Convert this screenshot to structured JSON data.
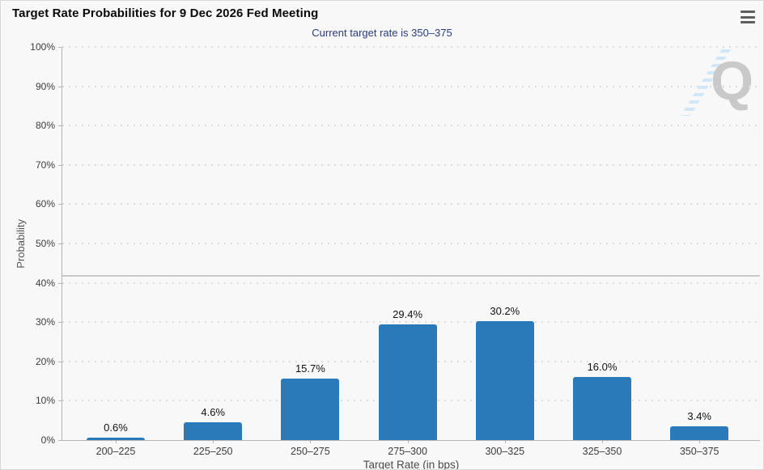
{
  "header": {
    "title": "Target Rate Probabilities for 9 Dec 2026 Fed Meeting",
    "menu_icon": "hamburger-icon"
  },
  "subtitle": "Current target rate is 350–375",
  "watermark_letter": "Q",
  "colors": {
    "bar": "#2a7ab9",
    "subtitle_text": "#2a3a7e",
    "axis_line": "#b5b5b5",
    "gridline": "#dbdbdb",
    "reference_line": "#c9c9c9",
    "watermark_gray": "#c9c9c9",
    "watermark_blue": "#cfe7f8",
    "page_background": "#f8f8f9"
  },
  "chart_data": {
    "type": "bar",
    "title": "Target Rate Probabilities for 9 Dec 2026 Fed Meeting",
    "subtitle": "Current target rate is 350–375",
    "categories": [
      "200–225",
      "225–250",
      "250–275",
      "275–300",
      "300–325",
      "325–350",
      "350–375"
    ],
    "values": [
      0.6,
      4.6,
      15.7,
      29.4,
      30.2,
      16.0,
      3.4
    ],
    "value_labels": [
      "0.6%",
      "4.6%",
      "15.7%",
      "29.4%",
      "30.2%",
      "16.0%",
      "3.4%"
    ],
    "xlabel": "Target Rate (in bps)",
    "ylabel": "Probability",
    "ylim": [
      0,
      100
    ],
    "ytick_step": 10,
    "yticks": [
      "0%",
      "10%",
      "20%",
      "30%",
      "40%",
      "50%",
      "60%",
      "70%",
      "80%",
      "90%",
      "100%"
    ],
    "grid": "dotted horizontal",
    "reference_line_y": 42,
    "legend": "none"
  }
}
